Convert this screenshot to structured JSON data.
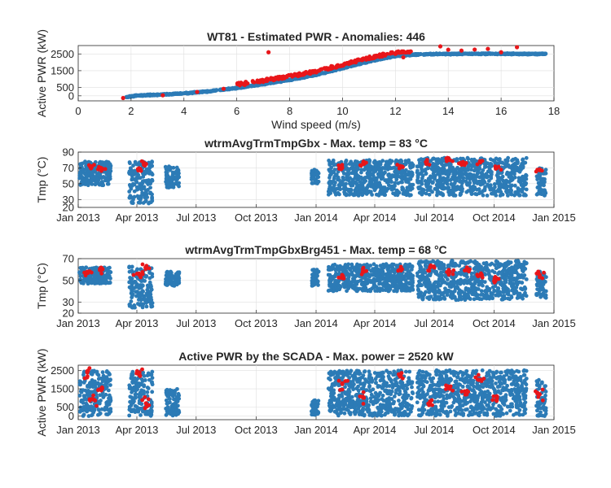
{
  "figure": {
    "panels": [
      {
        "id": "power-curve",
        "title": "WT81 - Estimated PWR - Anomalies: 446",
        "xlabel": "Wind speed (m/s)",
        "ylabel": "Active PWR (kW)",
        "xlim": [
          0,
          18
        ],
        "ylim": [
          -300,
          3000
        ],
        "xticks": [
          0,
          2,
          4,
          6,
          8,
          10,
          12,
          14,
          16,
          18
        ],
        "xtick_labels": [
          "0",
          "2",
          "4",
          "6",
          "8",
          "10",
          "12",
          "14",
          "16",
          "18"
        ],
        "yticks": [
          0,
          500,
          1500,
          2500
        ],
        "ytick_labels": [
          "0",
          "500",
          "1500",
          "2500"
        ]
      },
      {
        "id": "gearbox-temp",
        "title": "wtrmAvgTrmTmpGbx - Max. temp = 83 °C",
        "xlabel": "",
        "ylabel": "Tmp (°C)",
        "ylim": [
          20,
          90
        ],
        "yticks": [
          20,
          30,
          50,
          70,
          90
        ],
        "ytick_labels": [
          "20",
          "30",
          "50",
          "70",
          "90"
        ]
      },
      {
        "id": "bearing-temp",
        "title": "wtrmAvgTrmTmpGbxBrg451 - Max. temp = 68 °C",
        "xlabel": "",
        "ylabel": "Tmp (°C)",
        "ylim": [
          20,
          70
        ],
        "yticks": [
          20,
          30,
          50,
          70
        ],
        "ytick_labels": [
          "20",
          "30",
          "50",
          "70"
        ]
      },
      {
        "id": "scada-power",
        "title": "Active PWR by the SCADA - Max. power = 2520 kW",
        "xlabel": "",
        "ylabel": "Active PWR (kW)",
        "ylim": [
          -200,
          2800
        ],
        "yticks": [
          0,
          500,
          1500,
          2500
        ],
        "ytick_labels": [
          "0",
          "500",
          "1500",
          "2500"
        ]
      }
    ],
    "time_axis": {
      "xlim": [
        "2013-01-01",
        "2015-01-01"
      ],
      "ticks": [
        "2013-01-01",
        "2013-04-01",
        "2013-07-01",
        "2013-10-01",
        "2014-01-01",
        "2014-04-01",
        "2014-07-01",
        "2014-10-01",
        "2015-01-01"
      ],
      "tick_labels": [
        "Jan 2013",
        "Apr 2013",
        "Jul 2013",
        "Oct 2013",
        "Jan 2014",
        "Apr 2014",
        "Jul 2014",
        "Oct 2014",
        "Jan 2015"
      ]
    },
    "colors": {
      "normal": "#2c7bb6",
      "anomaly": "#e8161a",
      "grid": "#dfdfdf",
      "axis": "#262626"
    }
  },
  "chart_data": [
    {
      "type": "scatter",
      "title": "WT81 - Estimated PWR - Anomalies: 446",
      "xlabel": "Wind speed (m/s)",
      "ylabel": "Active PWR (kW)",
      "xlim": [
        0,
        18
      ],
      "ylim": [
        -300,
        3000
      ],
      "grid": true,
      "series": [
        {
          "color": "normal",
          "points": [
            [
              1.8,
              -80
            ],
            [
              2.2,
              20
            ],
            [
              3,
              60
            ],
            [
              4,
              150
            ],
            [
              5,
              280
            ],
            [
              6,
              470
            ],
            [
              7,
              700
            ],
            [
              8,
              950
            ],
            [
              9,
              1250
            ],
            [
              10,
              1650
            ],
            [
              11,
              2050
            ],
            [
              12,
              2380
            ],
            [
              13,
              2480
            ],
            [
              14,
              2500
            ],
            [
              15,
              2510
            ],
            [
              16,
              2510
            ],
            [
              17,
              2500
            ],
            [
              17.7,
              2500
            ]
          ]
        },
        {
          "color": "anomaly",
          "points": [
            [
              1.7,
              -130
            ],
            [
              3.2,
              30
            ],
            [
              4.5,
              230
            ],
            [
              5.5,
              420
            ],
            [
              6.3,
              650
            ],
            [
              7,
              830
            ],
            [
              7.2,
              2600
            ],
            [
              7.8,
              1050
            ],
            [
              8.5,
              1250
            ],
            [
              9,
              1400
            ],
            [
              9.5,
              1600
            ],
            [
              10,
              1800
            ],
            [
              10.5,
              2000
            ],
            [
              11,
              2200
            ],
            [
              11.5,
              2350
            ],
            [
              12,
              2500
            ],
            [
              12.3,
              2300
            ],
            [
              13.7,
              2950
            ],
            [
              14,
              2750
            ],
            [
              14.5,
              2700
            ],
            [
              15,
              2760
            ],
            [
              15.5,
              2800
            ],
            [
              16,
              2600
            ],
            [
              16.6,
              2900
            ]
          ]
        }
      ]
    },
    {
      "type": "scatter",
      "title": "wtrmAvgTrmTmpGbx - Max. temp = 83 °C",
      "ylabel": "Tmp (°C)",
      "ylim": [
        20,
        90
      ],
      "grid": true,
      "series": [
        {
          "color": "normal",
          "bands": [
            [
              "2013-01-03",
              "2013-02-20",
              48,
              78
            ],
            [
              "2013-03-20",
              "2013-04-25",
              25,
              78
            ],
            [
              "2013-05-15",
              "2013-06-05",
              45,
              72
            ],
            [
              "2013-12-25",
              "2014-01-05",
              50,
              68
            ],
            [
              "2014-01-20",
              "2014-05-30",
              35,
              80
            ],
            [
              "2014-06-05",
              "2014-11-20",
              35,
              83
            ],
            [
              "2014-12-05",
              "2014-12-20",
              35,
              70
            ]
          ]
        },
        {
          "color": "anomaly",
          "points": [
            [
              "2013-01-20",
              72
            ],
            [
              "2013-02-05",
              70
            ],
            [
              "2013-04-05",
              68
            ],
            [
              "2013-04-15",
              75
            ],
            [
              "2014-02-10",
              70
            ],
            [
              "2014-03-15",
              75
            ],
            [
              "2014-05-10",
              72
            ],
            [
              "2014-06-20",
              78
            ],
            [
              "2014-07-25",
              80
            ],
            [
              "2014-08-15",
              75
            ],
            [
              "2014-09-10",
              78
            ],
            [
              "2014-10-05",
              70
            ],
            [
              "2014-12-10",
              68
            ]
          ]
        }
      ]
    },
    {
      "type": "scatter",
      "title": "wtrmAvgTrmTmpGbxBrg451 - Max. temp = 68 °C",
      "ylabel": "Tmp (°C)",
      "ylim": [
        20,
        70
      ],
      "grid": true,
      "series": [
        {
          "color": "normal",
          "bands": [
            [
              "2013-01-03",
              "2013-02-20",
              47,
              62
            ],
            [
              "2013-03-20",
              "2013-04-25",
              25,
              63
            ],
            [
              "2013-05-15",
              "2013-06-05",
              45,
              58
            ],
            [
              "2013-12-25",
              "2014-01-05",
              45,
              60
            ],
            [
              "2014-01-20",
              "2014-05-30",
              40,
              65
            ],
            [
              "2014-06-05",
              "2014-11-20",
              32,
              68
            ],
            [
              "2014-12-05",
              "2014-12-20",
              33,
              58
            ]
          ]
        },
        {
          "color": "anomaly",
          "points": [
            [
              "2013-01-15",
              58
            ],
            [
              "2013-02-05",
              60
            ],
            [
              "2013-04-05",
              55
            ],
            [
              "2013-04-15",
              62
            ],
            [
              "2014-02-10",
              55
            ],
            [
              "2014-03-15",
              58
            ],
            [
              "2014-05-10",
              60
            ],
            [
              "2014-06-25",
              62
            ],
            [
              "2014-07-25",
              58
            ],
            [
              "2014-08-20",
              60
            ],
            [
              "2014-09-10",
              55
            ],
            [
              "2014-10-05",
              52
            ],
            [
              "2014-12-10",
              55
            ]
          ]
        }
      ]
    },
    {
      "type": "scatter",
      "title": "Active PWR by the SCADA - Max. power = 2520 kW",
      "ylabel": "Active PWR (kW)",
      "ylim": [
        -200,
        2800
      ],
      "grid": true,
      "series": [
        {
          "color": "normal",
          "bands": [
            [
              "2013-01-03",
              "2013-02-20",
              0,
              2520
            ],
            [
              "2013-03-20",
              "2013-04-25",
              0,
              2520
            ],
            [
              "2013-05-15",
              "2013-06-05",
              0,
              1500
            ],
            [
              "2013-12-25",
              "2014-01-05",
              0,
              900
            ],
            [
              "2014-01-20",
              "2014-05-30",
              0,
              2520
            ],
            [
              "2014-06-05",
              "2014-11-20",
              0,
              2520
            ],
            [
              "2014-12-05",
              "2014-12-20",
              0,
              2000
            ]
          ]
        },
        {
          "color": "anomaly",
          "points": [
            [
              "2013-01-15",
              2400
            ],
            [
              "2013-01-25",
              900
            ],
            [
              "2013-02-05",
              1500
            ],
            [
              "2013-04-05",
              2400
            ],
            [
              "2013-04-15",
              700
            ],
            [
              "2014-02-10",
              1800
            ],
            [
              "2014-03-15",
              1000
            ],
            [
              "2014-05-10",
              2200
            ],
            [
              "2014-06-25",
              800
            ],
            [
              "2014-07-25",
              1500
            ],
            [
              "2014-08-20",
              1200
            ],
            [
              "2014-09-10",
              2000
            ],
            [
              "2014-10-05",
              900
            ],
            [
              "2014-12-10",
              1200
            ]
          ]
        }
      ]
    }
  ]
}
